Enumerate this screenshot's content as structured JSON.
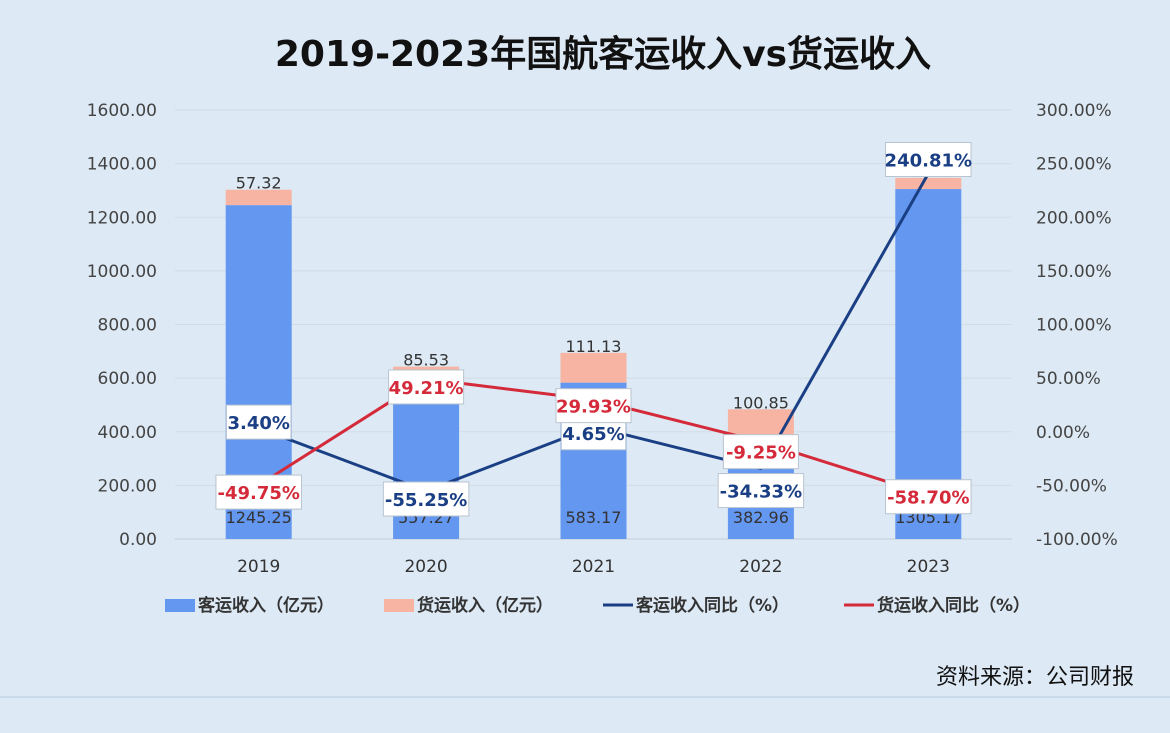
{
  "chart_data": {
    "type": "bar",
    "title": "2019-2023年国航客运收入vs货运收入",
    "categories": [
      "2019",
      "2020",
      "2021",
      "2022",
      "2023"
    ],
    "stacked": true,
    "y_left": {
      "range": [
        0,
        1600
      ],
      "ticks": [
        "0.00",
        "200.00",
        "400.00",
        "600.00",
        "800.00",
        "1000.00",
        "1200.00",
        "1400.00",
        "1600.00"
      ]
    },
    "y_right": {
      "range": [
        -100,
        300
      ],
      "ticks": [
        "-100.00%",
        "-50.00%",
        "0.00%",
        "50.00%",
        "100.00%",
        "150.00%",
        "200.00%",
        "250.00%",
        "300.00%"
      ]
    },
    "grid": true,
    "legend_position": "bottom",
    "series": [
      {
        "name": "客运收入（亿元）",
        "kind": "bar",
        "axis": "left",
        "color": "#6497f0",
        "values": [
          1245.25,
          557.27,
          583.17,
          382.96,
          1305.17
        ],
        "labels": [
          "1245.25",
          "557.27",
          "583.17",
          "382.96",
          "1305.17"
        ]
      },
      {
        "name": "货运收入（亿元）",
        "kind": "bar",
        "axis": "left",
        "color": "#f7b4a2",
        "values": [
          57.32,
          85.53,
          111.13,
          100.85,
          41.65
        ],
        "labels": [
          "57.32",
          "85.53",
          "111.13",
          "100.85",
          "41.65"
        ]
      },
      {
        "name": "客运收入同比（%）",
        "kind": "line",
        "axis": "right",
        "color": "#1a3f84",
        "values": [
          3.4,
          -55.25,
          4.65,
          -34.33,
          240.81
        ],
        "labels": [
          "3.40%",
          "-55.25%",
          "4.65%",
          "-34.33%",
          "240.81%"
        ]
      },
      {
        "name": "货运收入同比（%）",
        "kind": "line",
        "axis": "right",
        "color": "#d42a3a",
        "values": [
          -49.75,
          49.21,
          29.93,
          -9.25,
          -58.7
        ],
        "labels": [
          "-49.75%",
          "49.21%",
          "29.93%",
          "-9.25%",
          "-58.70%"
        ]
      }
    ]
  },
  "source_note": "资料来源：公司财报"
}
